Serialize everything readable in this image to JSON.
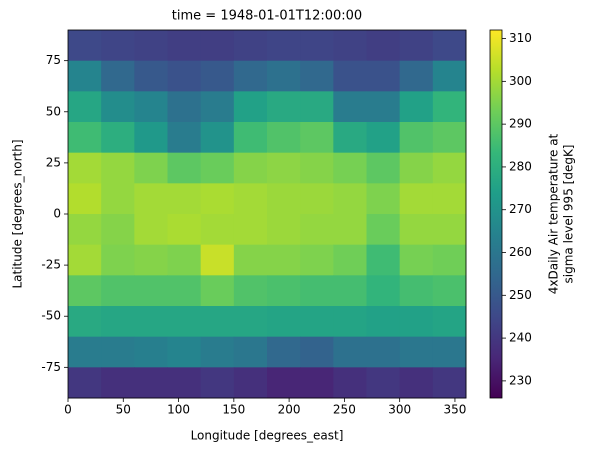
{
  "chart_data": {
    "type": "heatmap",
    "title": "time = 1948-01-01T12:00:00",
    "x_label": "Longitude [degrees_east]",
    "y_label": "Latitude [degrees_north]",
    "colorbar_label": [
      "4xDaily Air temperature at",
      "sigma level 995 [degK]"
    ],
    "colormap": "viridis",
    "x": [
      15,
      45,
      75,
      105,
      135,
      165,
      195,
      225,
      255,
      285,
      315,
      345
    ],
    "y": [
      82.5,
      67.5,
      52.5,
      37.5,
      22.5,
      7.5,
      -7.5,
      -22.5,
      -37.5,
      -52.5,
      -67.5,
      -82.5
    ],
    "values": [
      [
        245,
        244,
        243,
        242,
        242,
        243,
        244,
        244,
        243,
        242,
        243,
        245
      ],
      [
        265,
        255,
        250,
        248,
        250,
        255,
        258,
        255,
        248,
        248,
        255,
        265
      ],
      [
        277,
        268,
        265,
        258,
        262,
        275,
        278,
        278,
        262,
        262,
        275,
        282
      ],
      [
        285,
        280,
        272,
        262,
        270,
        285,
        288,
        290,
        278,
        275,
        288,
        290
      ],
      [
        300,
        298,
        295,
        290,
        292,
        296,
        297,
        296,
        294,
        290,
        296,
        298
      ],
      [
        302,
        298,
        300,
        300,
        301,
        300,
        299,
        299,
        298,
        295,
        300,
        300
      ],
      [
        298,
        296,
        300,
        301,
        300,
        300,
        299,
        298,
        298,
        292,
        298,
        298
      ],
      [
        300,
        295,
        296,
        295,
        305,
        296,
        296,
        295,
        293,
        285,
        294,
        293
      ],
      [
        290,
        288,
        288,
        288,
        292,
        288,
        287,
        286,
        286,
        282,
        286,
        287
      ],
      [
        278,
        277,
        277,
        277,
        277,
        277,
        276,
        276,
        276,
        275,
        275,
        276
      ],
      [
        262,
        262,
        263,
        265,
        262,
        260,
        255,
        253,
        258,
        258,
        260,
        260
      ],
      [
        240,
        238,
        238,
        238,
        240,
        238,
        235,
        235,
        238,
        240,
        238,
        240
      ]
    ],
    "xlim": [
      0,
      360
    ],
    "ylim": [
      -90,
      90
    ],
    "xticks": [
      0,
      50,
      100,
      150,
      200,
      250,
      300,
      350
    ],
    "yticks": [
      -75,
      -50,
      -25,
      0,
      25,
      50,
      75
    ],
    "zlim": [
      226,
      312
    ],
    "zticks": [
      230,
      240,
      250,
      260,
      270,
      280,
      290,
      300,
      310
    ]
  }
}
